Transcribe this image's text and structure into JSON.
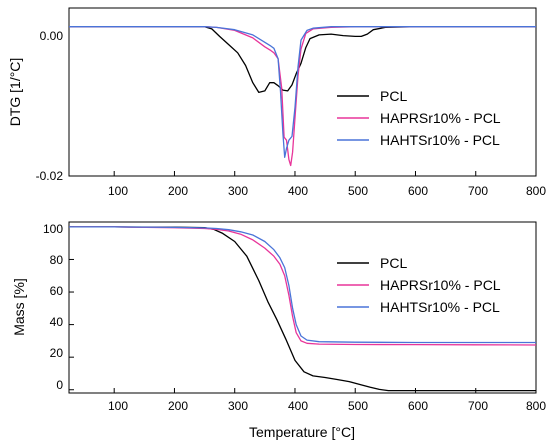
{
  "colors": {
    "PCL": "#000000",
    "HAPRSr10% - PCL": "#e8359a",
    "HAHTSr10% - PCL": "#4a74d8",
    "axis": "#000000"
  },
  "chart_data": [
    {
      "type": "line",
      "xlabel": "",
      "ylabel": "DTG [1/°C]",
      "xlim": [
        25,
        800
      ],
      "ylim": [
        -0.02,
        0.0025
      ],
      "y_ticks": [
        0.0,
        -0.02
      ],
      "y_tick_labels": [
        "0.00",
        "-0.02"
      ],
      "x_ticks": [
        100,
        200,
        300,
        400,
        500,
        600,
        700,
        800
      ],
      "x_tick_labels": [
        "100",
        "200",
        "300",
        "400",
        "500",
        "600",
        "700",
        "800"
      ],
      "legend": "right",
      "series": [
        {
          "name": "PCL",
          "x": [
            25,
            100,
            200,
            250,
            262,
            275,
            290,
            305,
            318,
            330,
            340,
            350,
            358,
            365,
            372,
            380,
            388,
            395,
            402,
            410,
            418,
            425,
            440,
            460,
            480,
            500,
            510,
            520,
            530,
            550,
            600,
            700,
            800
          ],
          "y": [
            0,
            0,
            0,
            0,
            -0.0003,
            -0.0013,
            -0.0024,
            -0.0035,
            -0.0052,
            -0.0075,
            -0.0088,
            -0.0086,
            -0.0075,
            -0.0075,
            -0.0079,
            -0.0085,
            -0.0086,
            -0.0078,
            -0.0063,
            -0.0049,
            -0.0028,
            -0.0016,
            -0.0011,
            -0.001,
            -0.0012,
            -0.0013,
            -0.0013,
            -0.001,
            -0.0004,
            -0.0001,
            0,
            0,
            0
          ]
        },
        {
          "name": "HAPRSr10% - PCL",
          "x": [
            25,
            100,
            200,
            250,
            270,
            300,
            330,
            350,
            360,
            365,
            372,
            378,
            382,
            386,
            390,
            393,
            396,
            400,
            405,
            410,
            418,
            430,
            460,
            500,
            600,
            700,
            800
          ],
          "y": [
            0,
            0,
            0,
            0,
            -0.0001,
            -0.0005,
            -0.0015,
            -0.0027,
            -0.0032,
            -0.0035,
            -0.0043,
            -0.0082,
            -0.0148,
            -0.0152,
            -0.0178,
            -0.0186,
            -0.0168,
            -0.0122,
            -0.0066,
            -0.003,
            -0.0009,
            -0.0003,
            -0.0001,
            0,
            0,
            0,
            0
          ]
        },
        {
          "name": "HAHTSr10% - PCL",
          "x": [
            25,
            100,
            200,
            250,
            270,
            300,
            330,
            350,
            360,
            365,
            372,
            376,
            380,
            383,
            386,
            390,
            395,
            400,
            405,
            410,
            420,
            430,
            460,
            500,
            600,
            700,
            800
          ],
          "y": [
            0,
            0,
            0,
            0,
            -0.0001,
            -0.0004,
            -0.0011,
            -0.0021,
            -0.0026,
            -0.0029,
            -0.0043,
            -0.0087,
            -0.0143,
            -0.0175,
            -0.0163,
            -0.0152,
            -0.0147,
            -0.0108,
            -0.0054,
            -0.0018,
            -0.0005,
            -0.0002,
            0,
            0,
            0,
            0,
            0
          ]
        }
      ]
    },
    {
      "type": "line",
      "xlabel": "Temperature [°C]",
      "ylabel": "Mass [%]",
      "xlim": [
        25,
        800
      ],
      "ylim": [
        -2,
        103
      ],
      "y_ticks": [
        0,
        20,
        40,
        60,
        80,
        100
      ],
      "y_tick_labels": [
        "0",
        "20",
        "40",
        "60",
        "80",
        "100"
      ],
      "x_ticks": [
        100,
        200,
        300,
        400,
        500,
        600,
        700,
        800
      ],
      "x_tick_labels": [
        "100",
        "200",
        "300",
        "400",
        "500",
        "600",
        "700",
        "800"
      ],
      "legend": "right",
      "series": [
        {
          "name": "PCL",
          "x": [
            25,
            100,
            200,
            250,
            265,
            280,
            300,
            320,
            340,
            355,
            370,
            385,
            400,
            415,
            430,
            450,
            470,
            490,
            510,
            525,
            540,
            555,
            600,
            700,
            800
          ],
          "y": [
            100,
            100,
            99.8,
            99.5,
            98.5,
            96,
            91,
            82,
            67,
            54,
            43,
            31,
            18,
            11,
            8.5,
            7.5,
            6.3,
            5,
            3,
            1.5,
            0.2,
            -0.5,
            -0.5,
            -0.5,
            -0.5
          ]
        },
        {
          "name": "HAPRSr10% - PCL",
          "x": [
            25,
            100,
            200,
            250,
            270,
            290,
            310,
            330,
            350,
            365,
            375,
            383,
            390,
            396,
            402,
            410,
            420,
            440,
            500,
            600,
            700,
            800
          ],
          "y": [
            100,
            100,
            99.5,
            99,
            98.5,
            97.5,
            95.5,
            92,
            87,
            82,
            77,
            70,
            58,
            45,
            35,
            30,
            28.5,
            28,
            27.8,
            27.7,
            27.6,
            27.5
          ]
        },
        {
          "name": "HAHTSr10% - PCL",
          "x": [
            25,
            100,
            200,
            250,
            270,
            290,
            310,
            330,
            350,
            365,
            375,
            383,
            390,
            396,
            402,
            410,
            420,
            440,
            500,
            600,
            700,
            800
          ],
          "y": [
            100,
            100,
            99.7,
            99.4,
            99,
            98.3,
            97,
            95,
            91,
            86,
            81,
            75,
            64,
            50,
            40,
            33,
            30.5,
            29.5,
            29.2,
            29,
            29,
            29
          ]
        }
      ]
    }
  ]
}
